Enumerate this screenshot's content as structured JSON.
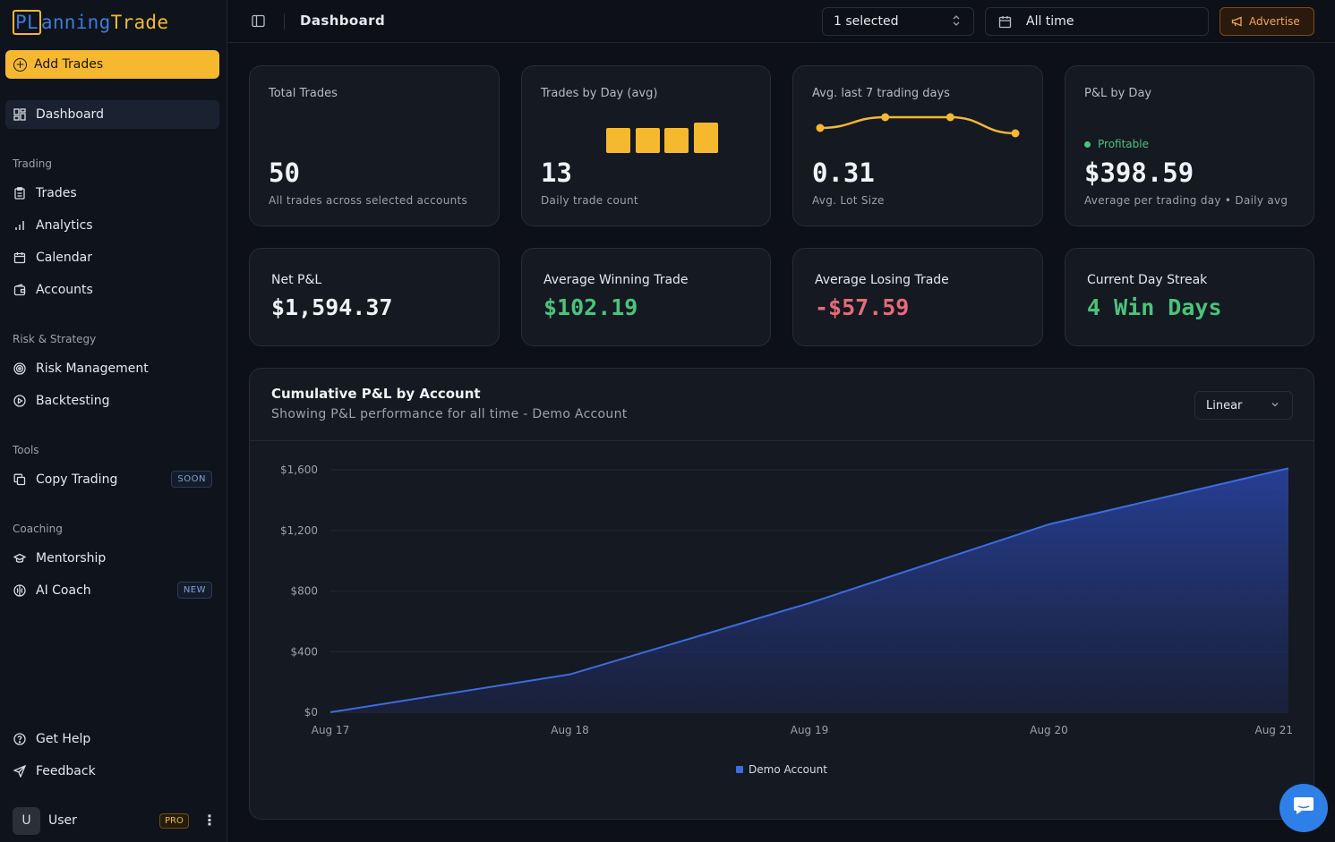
{
  "logo": {
    "pl": "PL",
    "rest": "anning",
    "trade": "Trade"
  },
  "sidebar": {
    "add_trades": "Add Trades",
    "dashboard": "Dashboard",
    "sections": {
      "trading": "Trading",
      "risk": "Risk & Strategy",
      "tools": "Tools",
      "coaching": "Coaching"
    },
    "items": {
      "trades": "Trades",
      "analytics": "Analytics",
      "calendar": "Calendar",
      "accounts": "Accounts",
      "risk_management": "Risk Management",
      "backtesting": "Backtesting",
      "copy_trading": "Copy Trading",
      "mentorship": "Mentorship",
      "ai_coach": "AI Coach",
      "get_help": "Get Help",
      "feedback": "Feedback"
    },
    "badges": {
      "soon": "SOON",
      "new": "NEW",
      "pro": "PRO"
    },
    "user": {
      "initial": "U",
      "name": "User"
    }
  },
  "topbar": {
    "title": "Dashboard",
    "account_select": "1 selected",
    "date_range": "All time",
    "advertise": "Advertise"
  },
  "stats": {
    "total_trades": {
      "title": "Total Trades",
      "value": "50",
      "sub": "All trades across selected accounts"
    },
    "trades_by_day": {
      "title": "Trades by Day (avg)",
      "value": "13",
      "sub": "Daily trade count",
      "bars": [
        1,
        1,
        1,
        1.2
      ]
    },
    "avg_last7": {
      "title": "Avg. last 7 trading days",
      "value": "0.31",
      "sub": "Avg. Lot Size",
      "trend": [
        0.3,
        0.32,
        0.32,
        0.29
      ]
    },
    "pnl_by_day": {
      "title": "P&L by Day",
      "status": "Profitable",
      "value": "$398.59",
      "sub": "Average per trading day • Daily avg"
    }
  },
  "kpis": {
    "net_pnl": {
      "title": "Net P&L",
      "value": "$1,594.37"
    },
    "avg_win": {
      "title": "Average Winning Trade",
      "value": "$102.19"
    },
    "avg_loss": {
      "title": "Average Losing Trade",
      "value": "-$57.59"
    },
    "streak": {
      "title": "Current Day Streak",
      "value": "4 Win Days"
    }
  },
  "colors": {
    "accent": "#f5b82e",
    "positive": "#4ac47a",
    "negative": "#e86a78",
    "series": "#3e6bdf"
  },
  "chart": {
    "title": "Cumulative P&L by Account",
    "subtitle": "Showing P&L performance for all time - Demo Account",
    "scale_select": "Linear",
    "legend": "Demo Account"
  },
  "chart_data": {
    "type": "area",
    "title": "Cumulative P&L by Account",
    "x": [
      "Aug 17",
      "Aug 18",
      "Aug 19",
      "Aug 20",
      "Aug 21"
    ],
    "series": [
      {
        "name": "Demo Account",
        "values": [
          0,
          250,
          720,
          1240,
          1610
        ]
      }
    ],
    "yticks": [
      "$0",
      "$400",
      "$800",
      "$1,200",
      "$1,600"
    ],
    "ylim": [
      0,
      1600
    ],
    "grid": true,
    "legend_position": "bottom"
  }
}
